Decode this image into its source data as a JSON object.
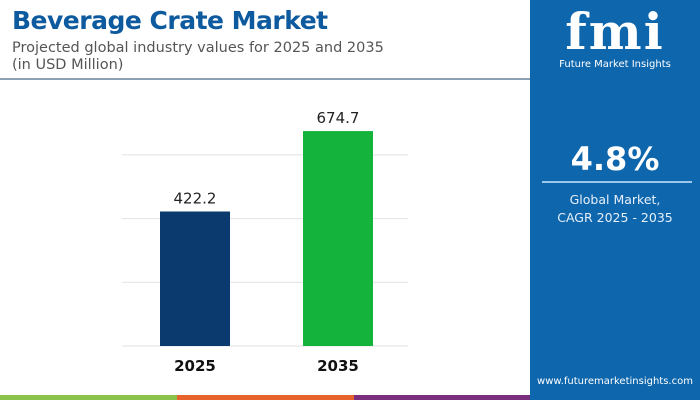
{
  "header": {
    "title": "Beverage Crate Market",
    "subtitle_line1": "Projected global industry values for 2025 and 2035",
    "subtitle_line2": "(in USD Million)"
  },
  "panel": {
    "logo": "fmi",
    "logo_sub": "Future Market Insights",
    "cagr_value": "4.8%",
    "cagr_label1": "Global Market,",
    "cagr_label2": "CAGR 2025 - 2035",
    "url": "www.futuremarketinsights.com"
  },
  "colors": {
    "bar_2025": "#0a3a6e",
    "bar_2035": "#14b33c",
    "panel": "#0e66ad",
    "title": "#0d5a9e",
    "strip": [
      "#8bc34a",
      "#e8632b",
      "#7b2d7e"
    ]
  },
  "chart_data": {
    "type": "bar",
    "title": "Beverage Crate Market",
    "categories": [
      "2025",
      "2035"
    ],
    "values": [
      422.2,
      674.7
    ],
    "labels": [
      "422.2",
      "674.7"
    ],
    "ylim": [
      0,
      700
    ],
    "grid": true,
    "unit": "USD Million"
  }
}
